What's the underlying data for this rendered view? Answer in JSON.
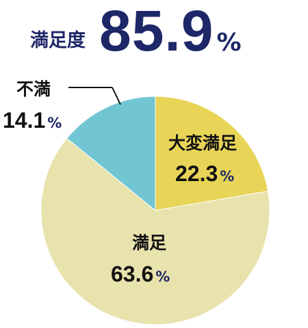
{
  "summary": {
    "label": "満足度",
    "value": "85.9",
    "unit": "%"
  },
  "colors": {
    "accent": "#1e2767"
  },
  "chart_data": {
    "type": "pie",
    "slices": [
      {
        "label": "大変満足",
        "value": 22.3,
        "display": "22.3",
        "unit": "%",
        "color": "#e8d457"
      },
      {
        "label": "満足",
        "value": 63.6,
        "display": "63.6",
        "unit": "%",
        "color": "#e8e2ad"
      },
      {
        "label": "不満",
        "value": 14.1,
        "display": "14.1",
        "unit": "%",
        "color": "#72c6d3"
      }
    ]
  }
}
